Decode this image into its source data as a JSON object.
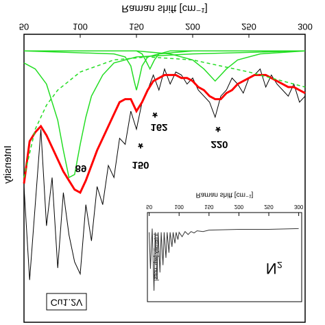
{
  "chart_data": [
    {
      "type": "line",
      "x_label": "Raman shift [cm⁻¹]",
      "y_label": "Intensity",
      "xlim": [
        50,
        300
      ],
      "xticks": [
        50,
        100,
        150,
        200,
        250,
        300
      ],
      "ylim": [
        4.5,
        100
      ],
      "x": [
        50,
        55,
        60,
        65,
        70,
        75,
        80,
        85,
        90,
        95,
        100,
        105,
        110,
        115,
        120,
        125,
        130,
        135,
        140,
        145,
        150,
        155,
        160,
        165,
        170,
        175,
        180,
        185,
        190,
        195,
        200,
        205,
        210,
        215,
        220,
        225,
        230,
        235,
        240,
        245,
        250,
        255,
        260,
        265,
        270,
        275,
        280,
        285,
        290,
        295,
        300
      ],
      "series": [
        {
          "color": "#000000",
          "values": [
            55,
            86,
            61,
            36,
            68,
            52,
            82,
            57,
            71,
            80,
            84,
            61,
            73,
            55,
            61,
            48,
            52,
            39,
            41,
            30,
            36,
            27,
            23,
            18,
            23,
            16,
            21,
            17,
            18,
            21,
            19,
            23,
            25,
            27,
            32,
            25,
            23,
            19,
            21,
            24,
            19,
            18,
            16,
            22,
            18,
            21,
            23,
            25,
            21,
            27,
            25
          ]
        },
        {
          "color": "#ff0000",
          "values": [
            54,
            40,
            37,
            35,
            38,
            42,
            46,
            50,
            53,
            56,
            57,
            53,
            48,
            43,
            39,
            35,
            31,
            27,
            26,
            26,
            30,
            27,
            23,
            20,
            19,
            18,
            18,
            18,
            19,
            19,
            20,
            22,
            23,
            25,
            26,
            26,
            24,
            23,
            21,
            20,
            19,
            18,
            18,
            18,
            19,
            20,
            21,
            22,
            22,
            23,
            24
          ]
        },
        {
          "color": "#22dd22",
          "x": [
            50,
            60,
            70,
            80,
            85,
            90,
            95,
            100,
            105,
            110,
            120,
            130,
            150,
            200,
            300
          ],
          "values": [
            14,
            16,
            21,
            33,
            43,
            52,
            51,
            41,
            32,
            25,
            18,
            14,
            12,
            11,
            10
          ]
        },
        {
          "color": "#22dd22",
          "x": [
            50,
            130,
            140,
            145,
            148,
            150,
            152,
            155,
            160,
            170,
            200,
            300
          ],
          "values": [
            10,
            11,
            12,
            15,
            20,
            23,
            20,
            15,
            12,
            11,
            10,
            10
          ]
        },
        {
          "color": "#22dd22",
          "x": [
            50,
            150,
            155,
            158,
            162,
            166,
            170,
            180,
            300
          ],
          "values": [
            10,
            10,
            11,
            13,
            16,
            13,
            11,
            10,
            10
          ]
        },
        {
          "color": "#22dd22",
          "x": [
            50,
            150,
            180,
            200,
            210,
            220,
            230,
            240,
            260,
            300
          ],
          "values": [
            10,
            10,
            11,
            13,
            16,
            20,
            16,
            13,
            11,
            10
          ]
        },
        {
          "color": "#22dd22",
          "dashed": true,
          "x": [
            50,
            60,
            70,
            80,
            100,
            130,
            160,
            200,
            250,
            300
          ],
          "values": [
            52,
            36,
            28,
            23,
            17,
            13,
            12,
            13,
            17,
            22
          ]
        }
      ],
      "annotations": [
        "89",
        "150",
        "*",
        "162",
        "*",
        "220",
        "*"
      ],
      "sample_label": "Cu1.2V"
    },
    {
      "type": "line",
      "x_label": "Raman shift [cm⁻¹]",
      "y_label": "Intensity [arb. units]",
      "label": "N₂",
      "xlim": [
        47,
        305
      ],
      "xticks": [
        50,
        100,
        150,
        200,
        250,
        300
      ],
      "ylim": [
        -17,
        105
      ],
      "series": [
        {
          "color": "#333333",
          "x": [
            50,
            52,
            55,
            58,
            60,
            63,
            65,
            68,
            70,
            73,
            75,
            78,
            80,
            83,
            85,
            88,
            90,
            93,
            95,
            98,
            100,
            105,
            110,
            115,
            120,
            125,
            130,
            140,
            150,
            200,
            250,
            300
          ],
          "values": [
            10,
            60,
            5,
            90,
            10,
            75,
            10,
            65,
            10,
            55,
            10,
            45,
            10,
            38,
            10,
            30,
            10,
            25,
            10,
            20,
            10,
            16,
            9,
            13,
            9,
            11,
            8,
            9,
            7,
            6,
            6,
            5
          ]
        }
      ]
    }
  ]
}
